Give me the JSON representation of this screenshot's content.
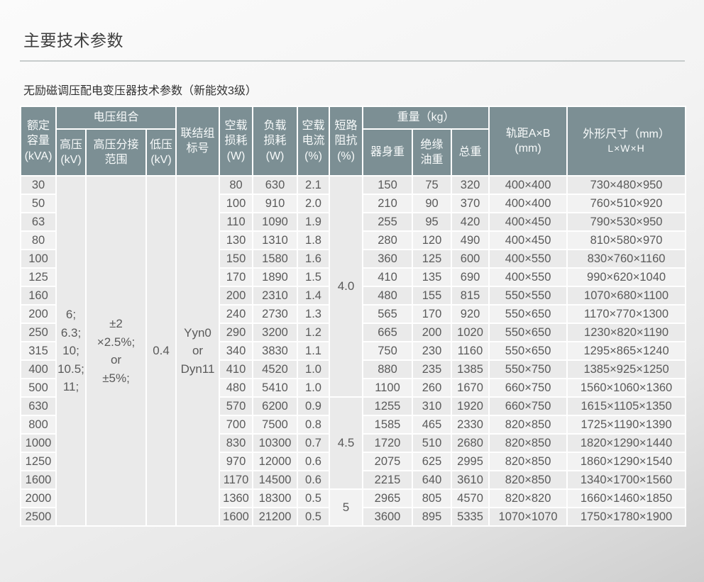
{
  "page": {
    "title": "主要技术参数",
    "subtitle": "无励磁调压配电变压器技术参数（新能效3级）"
  },
  "colors": {
    "header_bg": "#7c8f94",
    "header_text": "#f7fafa",
    "body_text": "#5a5a5a",
    "row_odd": "#eaeaea",
    "row_even": "#f2f2f2",
    "merged_cell_bg": "#ebebeb",
    "grid_line": "#ffffff",
    "divider": "#c7cccc"
  },
  "table": {
    "header": {
      "rated_capacity": "额定\n容量\n(kVA)",
      "voltage_combination": "电压组合",
      "high_voltage": "高压\n(kV)",
      "hv_tapping_range": "高压分接\n范围",
      "low_voltage": "低压\n(kV)",
      "vector_group": "联结组\n标号",
      "no_load_loss": "空载\n损耗\n(W)",
      "load_loss": "负载\n损耗\n(W)",
      "no_load_current": "空载\n电流\n(%)",
      "short_circuit_impedance": "短路\n阻抗\n(%)",
      "weight": "重量（kg）",
      "body_weight": "器身重",
      "oil_weight": "绝缘\n油重",
      "total_weight": "总重",
      "rail_gauge": "轨距A×B\n(mm)",
      "dimensions_title": "外形尺寸（mm）",
      "dimensions_sub": "L×W×H"
    },
    "shared": {
      "high_voltage": "6;\n6.3;\n10;\n10.5;\n11;",
      "hv_tapping_range": "±2\n×2.5%;\nor\n±5%;",
      "low_voltage": "0.4",
      "vector_group": "Yyn0\nor\nDyn11",
      "short_circuit_impedance": [
        {
          "value": "4.0",
          "row_span": 12
        },
        {
          "value": "4.5",
          "row_span": 5
        },
        {
          "value": "5",
          "row_span": 2
        }
      ]
    },
    "rows": [
      {
        "kva": "30",
        "no_load_loss": "80",
        "load_loss": "630",
        "no_load_current": "2.1",
        "body_weight": "150",
        "oil_weight": "75",
        "total_weight": "320",
        "rail_gauge": "400×400",
        "dimensions": "730×480×950"
      },
      {
        "kva": "50",
        "no_load_loss": "100",
        "load_loss": "910",
        "no_load_current": "2.0",
        "body_weight": "210",
        "oil_weight": "90",
        "total_weight": "370",
        "rail_gauge": "400×400",
        "dimensions": "760×510×920"
      },
      {
        "kva": "63",
        "no_load_loss": "110",
        "load_loss": "1090",
        "no_load_current": "1.9",
        "body_weight": "255",
        "oil_weight": "95",
        "total_weight": "420",
        "rail_gauge": "400×450",
        "dimensions": "790×530×950"
      },
      {
        "kva": "80",
        "no_load_loss": "130",
        "load_loss": "1310",
        "no_load_current": "1.8",
        "body_weight": "280",
        "oil_weight": "120",
        "total_weight": "490",
        "rail_gauge": "400×450",
        "dimensions": "810×580×970"
      },
      {
        "kva": "100",
        "no_load_loss": "150",
        "load_loss": "1580",
        "no_load_current": "1.6",
        "body_weight": "360",
        "oil_weight": "125",
        "total_weight": "600",
        "rail_gauge": "400×550",
        "dimensions": "830×760×1160"
      },
      {
        "kva": "125",
        "no_load_loss": "170",
        "load_loss": "1890",
        "no_load_current": "1.5",
        "body_weight": "410",
        "oil_weight": "135",
        "total_weight": "690",
        "rail_gauge": "400×550",
        "dimensions": "990×620×1040"
      },
      {
        "kva": "160",
        "no_load_loss": "200",
        "load_loss": "2310",
        "no_load_current": "1.4",
        "body_weight": "480",
        "oil_weight": "155",
        "total_weight": "815",
        "rail_gauge": "550×550",
        "dimensions": "1070×680×1100"
      },
      {
        "kva": "200",
        "no_load_loss": "240",
        "load_loss": "2730",
        "no_load_current": "1.3",
        "body_weight": "565",
        "oil_weight": "170",
        "total_weight": "920",
        "rail_gauge": "550×650",
        "dimensions": "1170×770×1300"
      },
      {
        "kva": "250",
        "no_load_loss": "290",
        "load_loss": "3200",
        "no_load_current": "1.2",
        "body_weight": "665",
        "oil_weight": "200",
        "total_weight": "1020",
        "rail_gauge": "550×650",
        "dimensions": "1230×820×1190"
      },
      {
        "kva": "315",
        "no_load_loss": "340",
        "load_loss": "3830",
        "no_load_current": "1.1",
        "body_weight": "750",
        "oil_weight": "230",
        "total_weight": "1160",
        "rail_gauge": "550×650",
        "dimensions": "1295×865×1240"
      },
      {
        "kva": "400",
        "no_load_loss": "410",
        "load_loss": "4520",
        "no_load_current": "1.0",
        "body_weight": "880",
        "oil_weight": "235",
        "total_weight": "1385",
        "rail_gauge": "550×750",
        "dimensions": "1385×925×1250"
      },
      {
        "kva": "500",
        "no_load_loss": "480",
        "load_loss": "5410",
        "no_load_current": "1.0",
        "body_weight": "1100",
        "oil_weight": "260",
        "total_weight": "1670",
        "rail_gauge": "660×750",
        "dimensions": "1560×1060×1360"
      },
      {
        "kva": "630",
        "no_load_loss": "570",
        "load_loss": "6200",
        "no_load_current": "0.9",
        "body_weight": "1255",
        "oil_weight": "310",
        "total_weight": "1920",
        "rail_gauge": "660×750",
        "dimensions": "1615×1105×1350"
      },
      {
        "kva": "800",
        "no_load_loss": "700",
        "load_loss": "7500",
        "no_load_current": "0.8",
        "body_weight": "1585",
        "oil_weight": "465",
        "total_weight": "2330",
        "rail_gauge": "820×850",
        "dimensions": "1725×1190×1390"
      },
      {
        "kva": "1000",
        "no_load_loss": "830",
        "load_loss": "10300",
        "no_load_current": "0.7",
        "body_weight": "1720",
        "oil_weight": "510",
        "total_weight": "2680",
        "rail_gauge": "820×850",
        "dimensions": "1820×1290×1440"
      },
      {
        "kva": "1250",
        "no_load_loss": "970",
        "load_loss": "12000",
        "no_load_current": "0.6",
        "body_weight": "2075",
        "oil_weight": "625",
        "total_weight": "2995",
        "rail_gauge": "820×850",
        "dimensions": "1860×1290×1540"
      },
      {
        "kva": "1600",
        "no_load_loss": "1170",
        "load_loss": "14500",
        "no_load_current": "0.6",
        "body_weight": "2215",
        "oil_weight": "640",
        "total_weight": "3610",
        "rail_gauge": "820×850",
        "dimensions": "1340×1700×1560"
      },
      {
        "kva": "2000",
        "no_load_loss": "1360",
        "load_loss": "18300",
        "no_load_current": "0.5",
        "body_weight": "2965",
        "oil_weight": "805",
        "total_weight": "4570",
        "rail_gauge": "820×820",
        "dimensions": "1660×1460×1850"
      },
      {
        "kva": "2500",
        "no_load_loss": "1600",
        "load_loss": "21200",
        "no_load_current": "0.5",
        "body_weight": "3600",
        "oil_weight": "895",
        "total_weight": "5335",
        "rail_gauge": "1070×1070",
        "dimensions": "1750×1780×1900"
      }
    ]
  }
}
